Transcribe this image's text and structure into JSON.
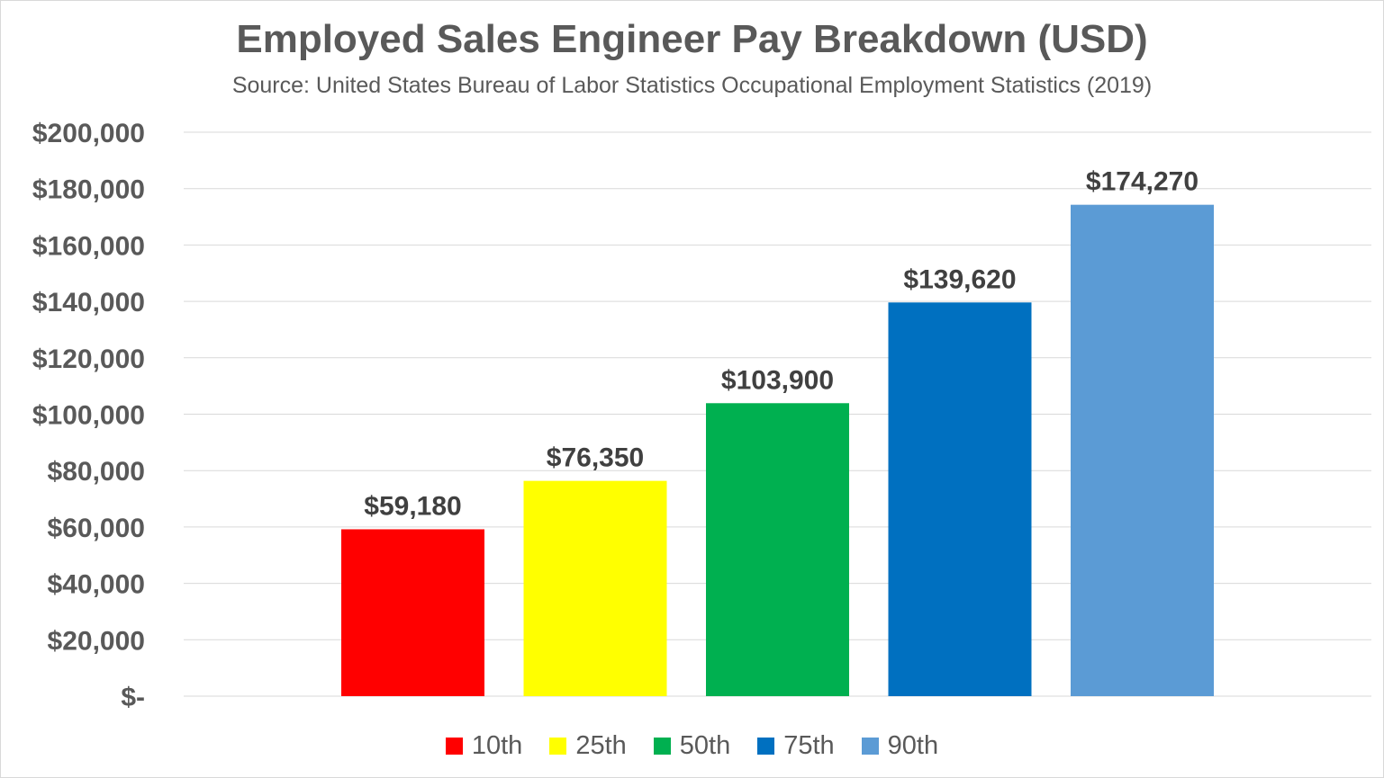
{
  "chart_data": {
    "type": "bar",
    "title": "Employed Sales Engineer Pay Breakdown (USD)",
    "subtitle": "Source: United States Bureau of Labor Statistics Occupational Employment Statistics (2019)",
    "categories": [
      "10th",
      "25th",
      "50th",
      "75th",
      "90th"
    ],
    "values": [
      59180,
      76350,
      103900,
      139620,
      174270
    ],
    "data_labels": [
      "$59,180",
      "$76,350",
      "$103,900",
      "$139,620",
      "$174,270"
    ],
    "colors": [
      "#ff0000",
      "#ffff00",
      "#00b050",
      "#0070c0",
      "#5b9bd5"
    ],
    "ylim": [
      0,
      200000
    ],
    "yticks": [
      0,
      20000,
      40000,
      60000,
      80000,
      100000,
      120000,
      140000,
      160000,
      180000,
      200000
    ],
    "ytick_labels": [
      "$-",
      "$20,000",
      "$40,000",
      "$60,000",
      "$80,000",
      "$100,000",
      "$120,000",
      "$140,000",
      "$160,000",
      "$180,000",
      "$200,000"
    ],
    "xlabel": "",
    "ylabel": "",
    "grid": true,
    "legend_position": "bottom"
  }
}
